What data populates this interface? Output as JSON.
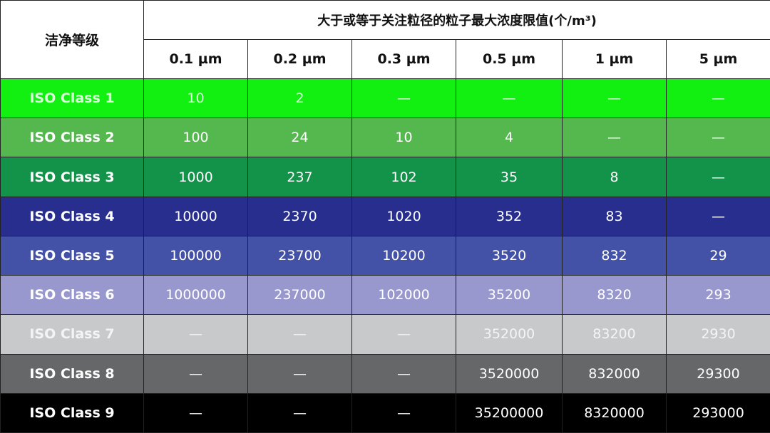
{
  "header": {
    "grade_label": "洁净等级",
    "group_label": "大于或等于关注粒径的粒子最大浓度限值(个/m³)",
    "sizes": [
      "0.1 µm",
      "0.2 µm",
      "0.3 µm",
      "0.5 µm",
      "1 µm",
      "5 µm"
    ]
  },
  "rows": [
    {
      "name": "ISO Class 1",
      "bg": "#11f011",
      "fg": "#d8ffd8",
      "values": [
        "10",
        "2",
        "—",
        "—",
        "—",
        "—"
      ]
    },
    {
      "name": "ISO Class 2",
      "bg": "#55b84f",
      "fg": "#ffffff",
      "values": [
        "100",
        "24",
        "10",
        "4",
        "—",
        "—"
      ]
    },
    {
      "name": "ISO Class 3",
      "bg": "#13924a",
      "fg": "#ffffff",
      "values": [
        "1000",
        "237",
        "102",
        "35",
        "8",
        "—"
      ]
    },
    {
      "name": "ISO Class 4",
      "bg": "#272e8e",
      "fg": "#ffffff",
      "values": [
        "10000",
        "2370",
        "1020",
        "352",
        "83",
        "—"
      ]
    },
    {
      "name": "ISO Class 5",
      "bg": "#4351a6",
      "fg": "#ffffff",
      "values": [
        "100000",
        "23700",
        "10200",
        "3520",
        "832",
        "29"
      ]
    },
    {
      "name": "ISO Class 6",
      "bg": "#9898cf",
      "fg": "#ffffff",
      "values": [
        "1000000",
        "237000",
        "102000",
        "35200",
        "8320",
        "293"
      ]
    },
    {
      "name": "ISO Class 7",
      "bg": "#c8c9ca",
      "fg": "#f4f4f4",
      "values": [
        "—",
        "—",
        "—",
        "352000",
        "83200",
        "2930"
      ]
    },
    {
      "name": "ISO Class 8",
      "bg": "#666768",
      "fg": "#ffffff",
      "values": [
        "—",
        "—",
        "—",
        "3520000",
        "832000",
        "29300"
      ]
    },
    {
      "name": "ISO Class 9",
      "bg": "#000000",
      "fg": "#ffffff",
      "values": [
        "—",
        "—",
        "—",
        "35200000",
        "8320000",
        "293000"
      ]
    }
  ]
}
